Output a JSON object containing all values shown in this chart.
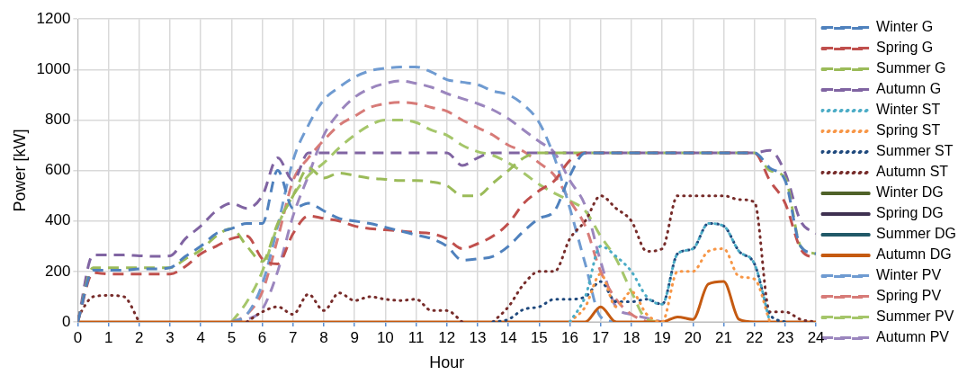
{
  "chart_data": {
    "type": "line",
    "xlabel": "Hour",
    "ylabel": "Power [kW]",
    "x": [
      0,
      0.5,
      1,
      1.5,
      2,
      2.5,
      3,
      3.5,
      4,
      4.5,
      5,
      5.5,
      6,
      6.5,
      7,
      7.5,
      8,
      8.5,
      9,
      9.5,
      10,
      10.5,
      11,
      11.5,
      12,
      12.5,
      13,
      13.5,
      14,
      14.5,
      15,
      15.5,
      16,
      16.5,
      17,
      17.5,
      18,
      18.5,
      19,
      19.5,
      20,
      20.5,
      21,
      21.5,
      22,
      22.5,
      23,
      23.5,
      24
    ],
    "xlim": [
      0,
      24
    ],
    "xticks": [
      0,
      1,
      2,
      3,
      4,
      5,
      6,
      7,
      8,
      9,
      10,
      11,
      12,
      13,
      14,
      15,
      16,
      17,
      18,
      19,
      20,
      21,
      22,
      23,
      24
    ],
    "ylim": [
      0,
      1200
    ],
    "yticks": [
      0,
      200,
      400,
      600,
      800,
      1000,
      1200
    ],
    "grid": true,
    "legend": "right",
    "marker": "none",
    "series": [
      {
        "name": "Winter G",
        "color": "#4f81bd",
        "line_style": "dashed",
        "values": [
          0,
          205,
          205,
          205,
          210,
          210,
          215,
          260,
          300,
          350,
          370,
          390,
          390,
          600,
          450,
          470,
          440,
          410,
          400,
          390,
          375,
          360,
          345,
          330,
          300,
          245,
          250,
          260,
          300,
          360,
          410,
          440,
          580,
          670,
          670,
          670,
          670,
          670,
          670,
          670,
          670,
          670,
          670,
          670,
          670,
          610,
          560,
          300,
          270
        ]
      },
      {
        "name": "Spring G",
        "color": "#c0504d",
        "line_style": "dashed",
        "values": [
          0,
          195,
          190,
          190,
          190,
          190,
          190,
          220,
          270,
          300,
          330,
          340,
          250,
          230,
          350,
          420,
          410,
          400,
          380,
          370,
          365,
          360,
          355,
          350,
          330,
          290,
          310,
          340,
          390,
          470,
          520,
          560,
          640,
          670,
          670,
          670,
          670,
          670,
          670,
          670,
          670,
          670,
          670,
          670,
          670,
          560,
          470,
          290,
          250
        ]
      },
      {
        "name": "Summer G",
        "color": "#9bbb59",
        "line_style": "dashed",
        "values": [
          0,
          215,
          215,
          215,
          215,
          215,
          215,
          250,
          285,
          340,
          370,
          300,
          240,
          390,
          500,
          610,
          570,
          590,
          580,
          570,
          565,
          560,
          560,
          555,
          540,
          500,
          500,
          550,
          600,
          650,
          670,
          670,
          670,
          670,
          670,
          670,
          670,
          670,
          670,
          670,
          670,
          670,
          670,
          670,
          670,
          600,
          570,
          300,
          270
        ]
      },
      {
        "name": "Autumn G",
        "color": "#8064a2",
        "line_style": "dashed",
        "values": [
          0,
          265,
          265,
          265,
          262,
          260,
          262,
          330,
          380,
          440,
          470,
          450,
          500,
          650,
          560,
          670,
          670,
          670,
          670,
          670,
          670,
          670,
          670,
          670,
          670,
          620,
          650,
          670,
          670,
          670,
          670,
          670,
          670,
          670,
          670,
          670,
          670,
          670,
          670,
          670,
          670,
          670,
          670,
          670,
          670,
          680,
          590,
          400,
          350
        ]
      },
      {
        "name": "Winter ST",
        "color": "#4bacc6",
        "line_style": "dotted",
        "values": [
          null,
          null,
          null,
          null,
          null,
          null,
          null,
          null,
          null,
          null,
          null,
          null,
          null,
          null,
          null,
          null,
          null,
          null,
          null,
          null,
          null,
          null,
          null,
          null,
          null,
          null,
          null,
          null,
          null,
          null,
          null,
          null,
          0,
          100,
          300,
          260,
          200,
          100,
          70,
          270,
          290,
          390,
          380,
          280,
          230,
          0,
          null,
          null,
          null
        ]
      },
      {
        "name": "Spring ST",
        "color": "#f79646",
        "line_style": "dotted",
        "values": [
          null,
          null,
          null,
          null,
          null,
          null,
          null,
          null,
          null,
          null,
          null,
          null,
          null,
          null,
          null,
          null,
          null,
          null,
          null,
          null,
          null,
          null,
          null,
          null,
          null,
          null,
          null,
          null,
          null,
          null,
          null,
          null,
          0,
          60,
          190,
          60,
          120,
          30,
          0,
          200,
          200,
          280,
          290,
          180,
          170,
          0,
          null,
          null,
          null
        ]
      },
      {
        "name": "Summer ST",
        "color": "#1f497d",
        "line_style": "dotted",
        "values": [
          null,
          null,
          null,
          null,
          null,
          null,
          null,
          null,
          null,
          null,
          null,
          null,
          null,
          null,
          null,
          null,
          null,
          null,
          null,
          null,
          null,
          null,
          null,
          null,
          null,
          null,
          null,
          0,
          10,
          50,
          60,
          90,
          90,
          100,
          160,
          80,
          80,
          90,
          70,
          270,
          290,
          390,
          380,
          280,
          230,
          30,
          0,
          null,
          null
        ]
      },
      {
        "name": "Autumn ST",
        "color": "#772c2a",
        "line_style": "dotted",
        "values": [
          20,
          100,
          105,
          100,
          0,
          null,
          null,
          null,
          null,
          null,
          null,
          0,
          40,
          60,
          30,
          110,
          45,
          115,
          85,
          100,
          90,
          85,
          90,
          45,
          45,
          0,
          null,
          0,
          60,
          150,
          200,
          200,
          330,
          400,
          500,
          450,
          400,
          280,
          290,
          500,
          500,
          500,
          500,
          485,
          475,
          40,
          40,
          10,
          0
        ]
      },
      {
        "name": "Winter DG",
        "color": "#4f6228",
        "line_style": "solid",
        "values": [
          null,
          null,
          null,
          null,
          null,
          null,
          null,
          null,
          null,
          null,
          null,
          null,
          null,
          null,
          null,
          null,
          null,
          null,
          null,
          null,
          null,
          null,
          null,
          null,
          null,
          null,
          null,
          null,
          null,
          null,
          null,
          null,
          null,
          null,
          null,
          null,
          null,
          null,
          null,
          null,
          null,
          null,
          null,
          null,
          null,
          null,
          null,
          null,
          null
        ]
      },
      {
        "name": "Spring DG",
        "color": "#3f3151",
        "line_style": "solid",
        "values": [
          null,
          null,
          null,
          null,
          null,
          null,
          null,
          null,
          null,
          null,
          null,
          null,
          null,
          null,
          null,
          null,
          null,
          null,
          null,
          null,
          null,
          null,
          null,
          null,
          null,
          null,
          null,
          null,
          null,
          null,
          null,
          null,
          null,
          null,
          null,
          null,
          null,
          null,
          null,
          null,
          null,
          null,
          null,
          null,
          null,
          null,
          null,
          null,
          null
        ]
      },
      {
        "name": "Summer DG",
        "color": "#215968",
        "line_style": "solid",
        "values": [
          null,
          null,
          null,
          null,
          null,
          null,
          null,
          null,
          null,
          null,
          null,
          null,
          null,
          null,
          null,
          null,
          null,
          null,
          null,
          null,
          null,
          null,
          null,
          null,
          null,
          null,
          null,
          null,
          null,
          null,
          null,
          null,
          null,
          null,
          null,
          null,
          null,
          null,
          null,
          null,
          null,
          null,
          null,
          null,
          null,
          null,
          null,
          null,
          null
        ]
      },
      {
        "name": "Autumn DG",
        "color": "#c55a11",
        "line_style": "solid",
        "values": [
          0,
          0,
          0,
          0,
          0,
          0,
          0,
          0,
          0,
          0,
          0,
          0,
          0,
          0,
          0,
          0,
          0,
          0,
          0,
          0,
          0,
          0,
          0,
          0,
          0,
          0,
          0,
          0,
          0,
          0,
          0,
          0,
          0,
          0,
          60,
          0,
          0,
          0,
          0,
          20,
          10,
          150,
          160,
          10,
          0,
          0,
          0,
          0,
          0
        ]
      },
      {
        "name": "Winter PV",
        "color": "#6f9bd1",
        "line_style": "dashed",
        "values": [
          null,
          null,
          null,
          null,
          null,
          null,
          null,
          null,
          null,
          null,
          0,
          30,
          150,
          380,
          640,
          780,
          880,
          930,
          970,
          995,
          1005,
          1010,
          1010,
          990,
          960,
          950,
          940,
          915,
          900,
          860,
          790,
          650,
          450,
          230,
          20,
          0,
          null,
          null,
          null,
          null,
          null,
          null,
          null,
          null,
          null,
          null,
          null,
          null,
          null
        ]
      },
      {
        "name": "Spring PV",
        "color": "#d77b78",
        "line_style": "dashed",
        "values": [
          null,
          null,
          null,
          null,
          null,
          null,
          null,
          null,
          null,
          null,
          0,
          30,
          120,
          330,
          560,
          650,
          720,
          780,
          815,
          850,
          865,
          870,
          865,
          850,
          835,
          800,
          770,
          740,
          700,
          675,
          630,
          580,
          480,
          380,
          200,
          90,
          30,
          0,
          null,
          null,
          null,
          null,
          null,
          null,
          null,
          null,
          null,
          null,
          null
        ]
      },
      {
        "name": "Summer PV",
        "color": "#a5c66a",
        "line_style": "dashed",
        "values": [
          null,
          null,
          null,
          null,
          null,
          null,
          null,
          null,
          null,
          null,
          0,
          80,
          200,
          380,
          500,
          580,
          630,
          690,
          740,
          780,
          800,
          800,
          790,
          760,
          740,
          700,
          675,
          660,
          630,
          590,
          545,
          510,
          480,
          440,
          340,
          250,
          120,
          10,
          0,
          null,
          null,
          null,
          null,
          null,
          null,
          null,
          null,
          null,
          null
        ]
      },
      {
        "name": "Autumn PV",
        "color": "#9b86be",
        "line_style": "dashed",
        "values": [
          null,
          null,
          null,
          null,
          null,
          null,
          null,
          null,
          null,
          null,
          0,
          10,
          50,
          200,
          420,
          580,
          740,
          830,
          890,
          925,
          945,
          955,
          945,
          930,
          905,
          885,
          865,
          840,
          805,
          760,
          715,
          670,
          560,
          460,
          240,
          60,
          30,
          15,
          0,
          null,
          null,
          null,
          null,
          null,
          null,
          null,
          null,
          null,
          null
        ]
      }
    ]
  }
}
